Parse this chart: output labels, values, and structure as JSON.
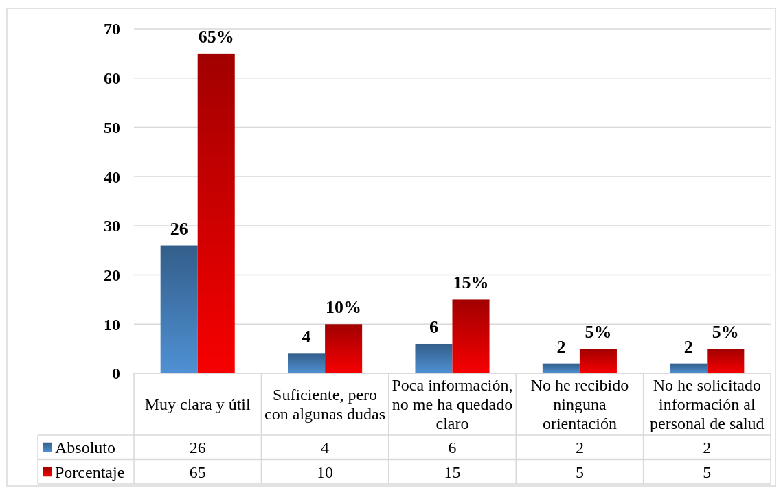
{
  "chart_data": {
    "type": "bar",
    "categories": [
      "Muy clara y útil",
      "Suficiente, pero con algunas dudas",
      "Poca información, no me ha quedado claro",
      "No he recibido ninguna orientación",
      "No he solicitado información al personal de salud"
    ],
    "series": [
      {
        "name": "Absoluto",
        "color": "#4279b1",
        "values": [
          26,
          4,
          6,
          2,
          2
        ],
        "value_labels": [
          "26",
          "4",
          "6",
          "2",
          "2"
        ]
      },
      {
        "name": "Porcentaje",
        "color": "#cf0000",
        "values": [
          65,
          10,
          15,
          5,
          5
        ],
        "value_labels": [
          "65%",
          "10%",
          "15%",
          "5%",
          "5%"
        ]
      }
    ],
    "annotations": [
      "26",
      "4",
      "6",
      "2",
      "2",
      "65",
      "10",
      "15",
      "5",
      "5"
    ],
    "ylim": [
      0,
      70
    ],
    "yticks": [
      0,
      10,
      20,
      30,
      40,
      50,
      60,
      70
    ],
    "grid": "y",
    "legend": "bottom"
  }
}
